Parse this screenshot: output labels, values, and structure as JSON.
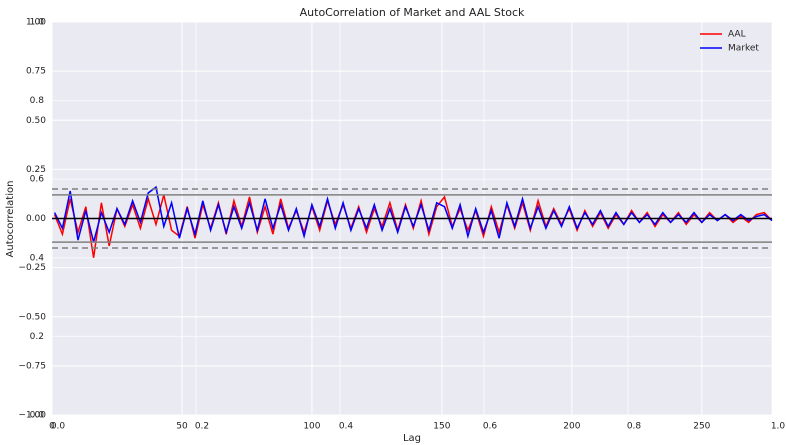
{
  "chart_data": {
    "type": "line",
    "title": "AutoCorrelation of Market and AAL Stock",
    "xlabel": "Lag",
    "ylabel": "Autocorrelation",
    "x": [
      1,
      4,
      7,
      10,
      13,
      16,
      19,
      22,
      25,
      28,
      31,
      34,
      37,
      40,
      43,
      46,
      49,
      52,
      55,
      58,
      61,
      64,
      67,
      70,
      73,
      76,
      79,
      82,
      85,
      88,
      91,
      94,
      97,
      100,
      103,
      106,
      109,
      112,
      115,
      118,
      121,
      124,
      127,
      130,
      133,
      136,
      139,
      142,
      145,
      148,
      151,
      154,
      157,
      160,
      163,
      166,
      169,
      172,
      175,
      178,
      181,
      184,
      187,
      190,
      193,
      196,
      199,
      202,
      205,
      208,
      211,
      214,
      217,
      220,
      223,
      226,
      229,
      232,
      235,
      238,
      241,
      244,
      247,
      250,
      253,
      256,
      259,
      262,
      265,
      268,
      271,
      274,
      277
    ],
    "series": [
      {
        "name": "AAL",
        "color": "#ff0000",
        "values": [
          0.02,
          -0.08,
          0.1,
          -0.07,
          0.06,
          -0.2,
          0.08,
          -0.14,
          0.05,
          -0.04,
          0.07,
          -0.05,
          0.1,
          -0.03,
          0.12,
          -0.06,
          -0.09,
          0.06,
          -0.1,
          0.07,
          -0.05,
          0.08,
          -0.08,
          0.09,
          -0.04,
          0.11,
          -0.07,
          0.06,
          -0.08,
          0.1,
          -0.05,
          0.04,
          -0.07,
          0.06,
          -0.06,
          0.09,
          -0.03,
          0.07,
          -0.05,
          0.06,
          -0.07,
          0.05,
          -0.04,
          0.08,
          -0.06,
          0.07,
          -0.05,
          0.09,
          -0.08,
          0.06,
          0.11,
          -0.04,
          0.05,
          -0.06,
          0.04,
          -0.09,
          0.06,
          -0.07,
          0.07,
          -0.05,
          0.08,
          -0.06,
          0.09,
          -0.04,
          0.05,
          -0.03,
          0.05,
          -0.06,
          0.04,
          -0.04,
          0.03,
          -0.05,
          0.02,
          -0.03,
          0.04,
          -0.02,
          0.03,
          -0.04,
          0.02,
          -0.02,
          0.03,
          -0.03,
          0.02,
          -0.02,
          0.03,
          -0.01,
          0.02,
          -0.02,
          0.01,
          -0.02,
          0.02,
          0.03,
          -0.01
        ]
      },
      {
        "name": "Market",
        "color": "#0000ff",
        "values": [
          0.03,
          -0.05,
          0.14,
          -0.11,
          0.04,
          -0.12,
          0.03,
          -0.07,
          0.05,
          -0.03,
          0.09,
          -0.02,
          0.13,
          0.16,
          -0.04,
          0.08,
          -0.1,
          0.05,
          -0.08,
          0.09,
          -0.06,
          0.07,
          -0.07,
          0.06,
          -0.05,
          0.08,
          -0.06,
          0.1,
          -0.05,
          0.07,
          -0.06,
          0.05,
          -0.09,
          0.07,
          -0.04,
          0.1,
          -0.05,
          0.08,
          -0.06,
          0.05,
          -0.05,
          0.07,
          -0.06,
          0.05,
          -0.07,
          0.06,
          -0.04,
          0.07,
          -0.06,
          0.08,
          0.06,
          -0.05,
          0.07,
          -0.09,
          0.05,
          -0.07,
          0.04,
          -0.1,
          0.08,
          -0.04,
          0.1,
          -0.05,
          0.06,
          -0.05,
          0.04,
          -0.04,
          0.06,
          -0.05,
          0.03,
          -0.03,
          0.04,
          -0.04,
          0.03,
          -0.03,
          0.03,
          -0.02,
          0.02,
          -0.03,
          0.03,
          -0.02,
          0.02,
          -0.02,
          0.03,
          -0.02,
          0.02,
          -0.01,
          0.02,
          -0.01,
          0.02,
          -0.01,
          0.01,
          0.02,
          -0.01
        ]
      }
    ],
    "hlines": [
      {
        "value": 0.15,
        "color": "#808080",
        "dashed": true
      },
      {
        "value": 0.12,
        "color": "#808080",
        "dashed": false
      },
      {
        "value": 0,
        "color": "#000000",
        "dashed": false
      },
      {
        "value": -0.12,
        "color": "#808080",
        "dashed": false
      },
      {
        "value": -0.15,
        "color": "#808080",
        "dashed": true
      }
    ],
    "xlim": [
      0,
      277
    ],
    "xticks": [
      0,
      50,
      100,
      150,
      200,
      250
    ],
    "ylim": [
      -1,
      1
    ],
    "yticks": [
      {
        "value": -1,
        "label": "−1.00"
      },
      {
        "value": -0.75,
        "label": "−0.75"
      },
      {
        "value": -0.5,
        "label": "−0.50"
      },
      {
        "value": -0.25,
        "label": "−0.25"
      },
      {
        "value": 0,
        "label": "0.00"
      },
      {
        "value": 0.25,
        "label": "0.25"
      },
      {
        "value": 0.5,
        "label": "0.50"
      },
      {
        "value": 0.75,
        "label": "0.75"
      },
      {
        "value": 1,
        "label": "1.00"
      }
    ],
    "x2lim": [
      0,
      1
    ],
    "x2ticks": [
      {
        "value": 0,
        "label": "0.0"
      },
      {
        "value": 0.2,
        "label": "0.2"
      },
      {
        "value": 0.4,
        "label": "0.4"
      },
      {
        "value": 0.6,
        "label": "0.6"
      },
      {
        "value": 0.8,
        "label": "0.8"
      },
      {
        "value": 1,
        "label": "1.0"
      }
    ],
    "y2lim": [
      0,
      1
    ],
    "y2ticks": [
      {
        "value": 0,
        "label": "0.0"
      },
      {
        "value": 0.2,
        "label": "0.2"
      },
      {
        "value": 0.4,
        "label": "0.4"
      },
      {
        "value": 0.6,
        "label": "0.6"
      },
      {
        "value": 0.8,
        "label": "0.8"
      },
      {
        "value": 1,
        "label": "1.0"
      }
    ],
    "grid": true,
    "legend": "upper right"
  }
}
